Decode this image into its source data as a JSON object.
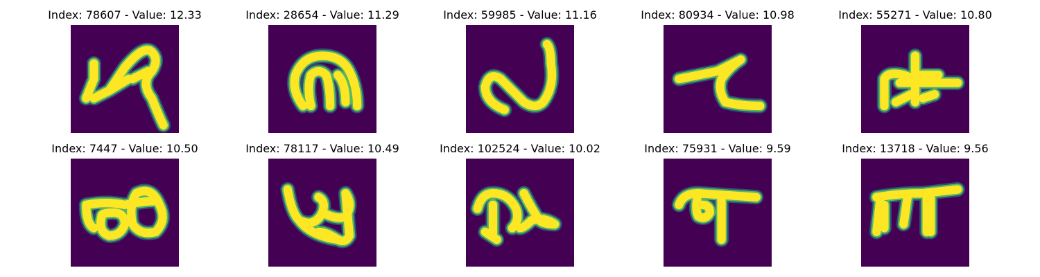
{
  "colors": {
    "background": "#440154",
    "stroke_edge": "#21918c",
    "stroke_mid": "#5ec962",
    "stroke_core": "#fde725"
  },
  "panels": [
    {
      "title": "Index: 78607 - Value: 12.33",
      "glyph": "handwritten-character-1"
    },
    {
      "title": "Index: 28654 - Value: 11.29",
      "glyph": "handwritten-character-2"
    },
    {
      "title": "Index: 59985 - Value: 11.16",
      "glyph": "handwritten-character-3"
    },
    {
      "title": "Index: 80934 - Value: 10.98",
      "glyph": "handwritten-character-4"
    },
    {
      "title": "Index: 55271 - Value: 10.80",
      "glyph": "handwritten-character-5"
    },
    {
      "title": "Index: 7447 - Value: 10.50",
      "glyph": "handwritten-character-6"
    },
    {
      "title": "Index: 78117 - Value: 10.49",
      "glyph": "handwritten-character-7"
    },
    {
      "title": "Index: 102524 - Value: 10.02",
      "glyph": "handwritten-character-8"
    },
    {
      "title": "Index: 75931 - Value: 9.59",
      "glyph": "handwritten-character-9"
    },
    {
      "title": "Index: 13718 - Value: 9.56",
      "glyph": "handwritten-character-10"
    }
  ]
}
